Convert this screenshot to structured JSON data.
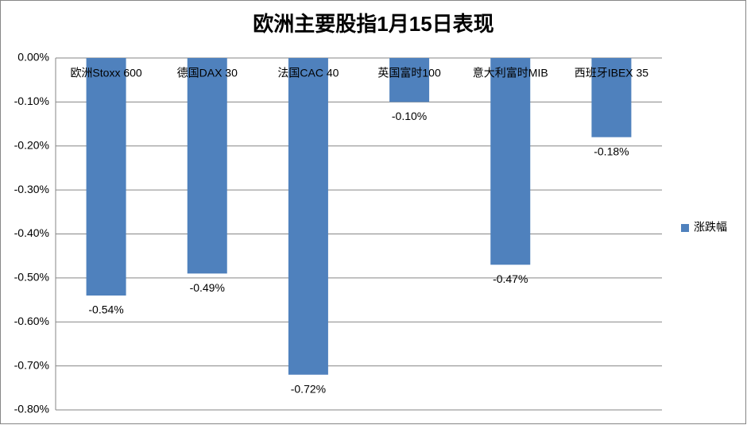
{
  "chart_data": {
    "type": "bar",
    "title": "欧洲主要股指1月15日表现",
    "categories": [
      "欧洲Stoxx 600",
      "德国DAX 30",
      "法国CAC 40",
      "英国富时100",
      "意大利富时MIB",
      "西班牙IBEX 35"
    ],
    "series": [
      {
        "name": "涨跌幅",
        "color": "#4f81bd",
        "values": [
          -0.54,
          -0.49,
          -0.72,
          -0.1,
          -0.47,
          -0.18
        ],
        "value_labels": [
          "-0.54%",
          "-0.49%",
          "-0.72%",
          "-0.10%",
          "-0.47%",
          "-0.18%"
        ]
      }
    ],
    "ylim": [
      -0.8,
      0
    ],
    "yticks": [
      {
        "value": 0,
        "label": "0.00%"
      },
      {
        "value": -0.1,
        "label": "-0.10%"
      },
      {
        "value": -0.2,
        "label": "-0.20%"
      },
      {
        "value": -0.3,
        "label": "-0.30%"
      },
      {
        "value": -0.4,
        "label": "-0.40%"
      },
      {
        "value": -0.5,
        "label": "-0.50%"
      },
      {
        "value": -0.6,
        "label": "-0.60%"
      },
      {
        "value": -0.7,
        "label": "-0.70%"
      },
      {
        "value": -0.8,
        "label": "-0.80%"
      }
    ],
    "grid": true,
    "legend": "right"
  }
}
